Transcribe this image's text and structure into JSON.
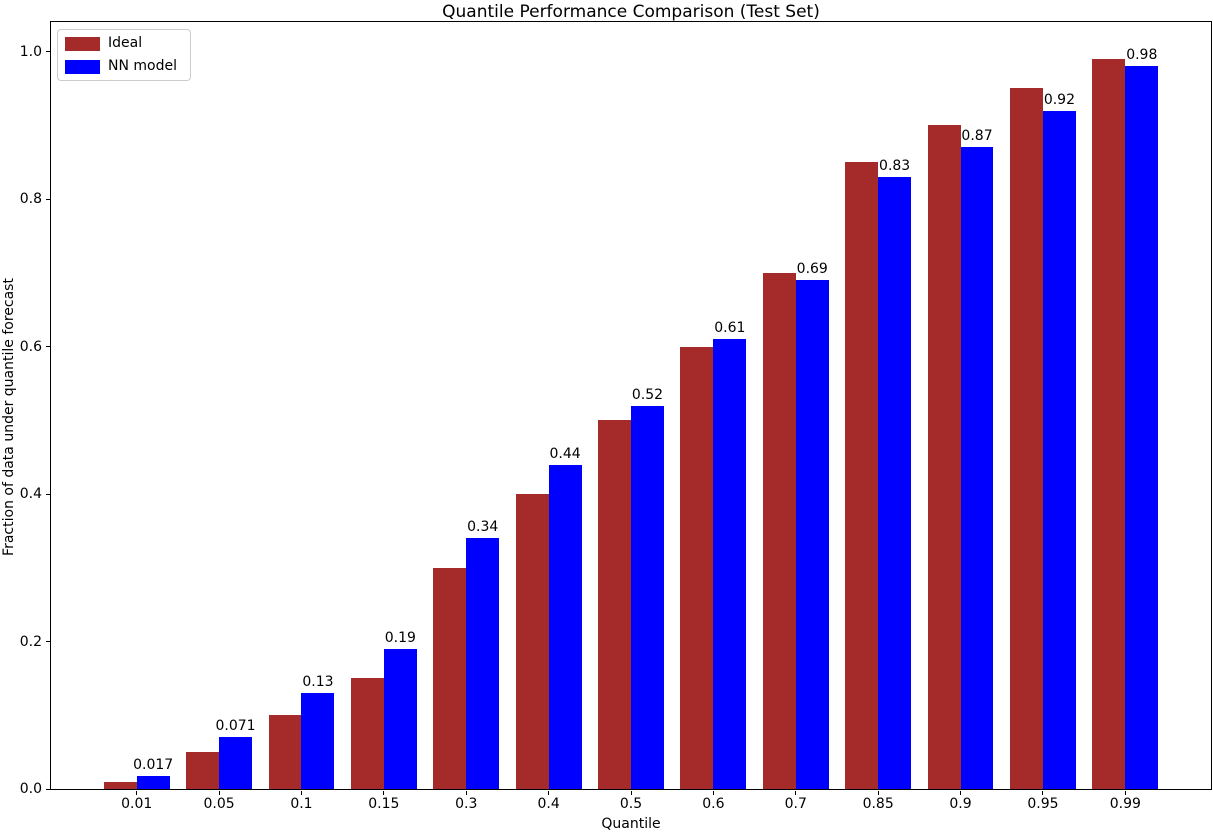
{
  "chart_data": {
    "type": "bar",
    "title": "Quantile Performance Comparison (Test Set)",
    "xlabel": "Quantile",
    "ylabel": "Fraction of data under quantile forecast",
    "categories": [
      "0.01",
      "0.05",
      "0.1",
      "0.15",
      "0.3",
      "0.4",
      "0.5",
      "0.6",
      "0.7",
      "0.85",
      "0.9",
      "0.95",
      "0.99"
    ],
    "series": [
      {
        "name": "Ideal",
        "color": "#A52A2A",
        "values": [
          0.01,
          0.05,
          0.1,
          0.15,
          0.3,
          0.4,
          0.5,
          0.6,
          0.7,
          0.85,
          0.9,
          0.95,
          0.99
        ]
      },
      {
        "name": "NN model",
        "color": "#0000FF",
        "values": [
          0.017,
          0.071,
          0.13,
          0.19,
          0.34,
          0.44,
          0.52,
          0.61,
          0.69,
          0.83,
          0.87,
          0.92,
          0.98
        ]
      }
    ],
    "bar_labels": [
      "0.017",
      "0.071",
      "0.13",
      "0.19",
      "0.34",
      "0.44",
      "0.52",
      "0.61",
      "0.69",
      "0.83",
      "0.87",
      "0.92",
      "0.98"
    ],
    "yticks": [
      "0.0",
      "0.2",
      "0.4",
      "0.6",
      "0.8",
      "1.0"
    ],
    "ylim": [
      0,
      1.04
    ],
    "legend_position": "upper-left",
    "grid": false,
    "axis_color": "#000000",
    "text_color": "#000000"
  }
}
